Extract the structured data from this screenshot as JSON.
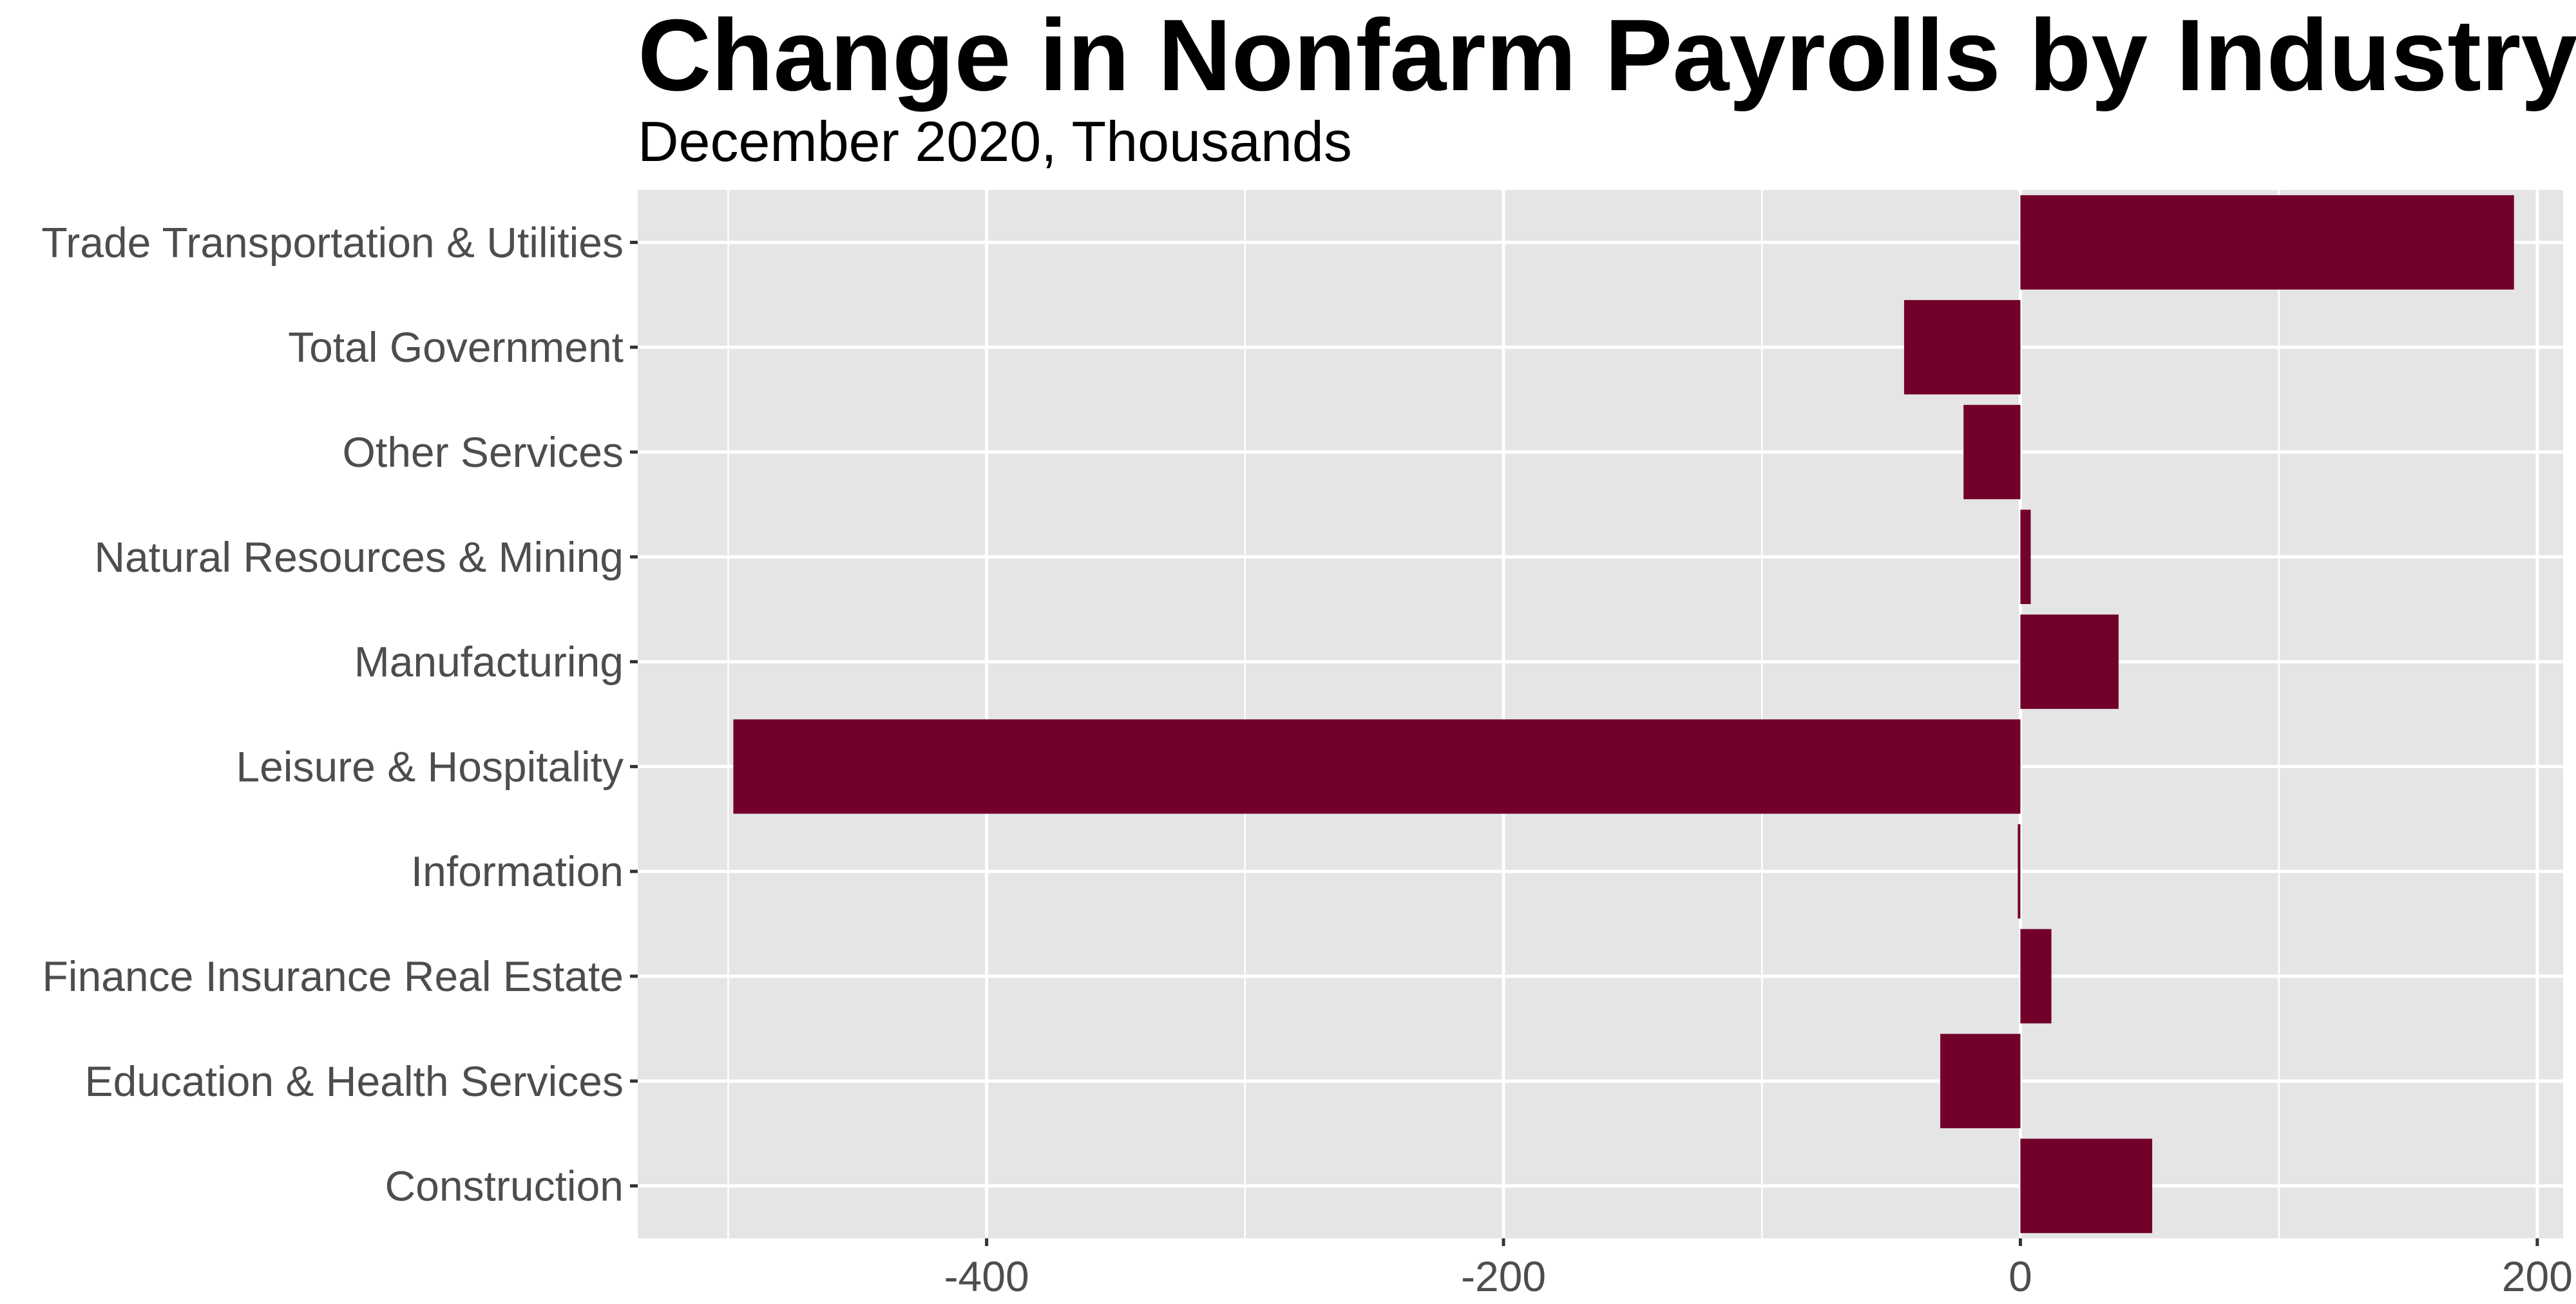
{
  "chart_data": {
    "type": "bar",
    "orientation": "horizontal",
    "title": "Change in Nonfarm Payrolls by Industry",
    "subtitle": "December 2020, Thousands",
    "xlabel": "",
    "ylabel": "",
    "categories": [
      "Trade Transportation & Utilities",
      "Total Government",
      "Other Services",
      "Natural Resources & Mining",
      "Manufacturing ",
      "Leisure & Hospitality",
      "Information",
      "Finance Insurance Real Estate",
      "Education & Health Services",
      "Construction"
    ],
    "values": [
      191,
      -45,
      -22,
      4,
      38,
      -498,
      -1,
      12,
      -31,
      51
    ],
    "xlim": [
      -535,
      210
    ],
    "x_ticks": [
      -400,
      -200,
      0,
      200
    ],
    "x_tick_labels": [
      "-400",
      "-200",
      "0",
      "200"
    ],
    "grid": true,
    "legend": "none",
    "colors": {
      "bar": "#72002b",
      "panel": "#e5e5e5",
      "grid": "#ffffff",
      "tick_text": "#4d4d4d",
      "title": "#000000"
    }
  }
}
